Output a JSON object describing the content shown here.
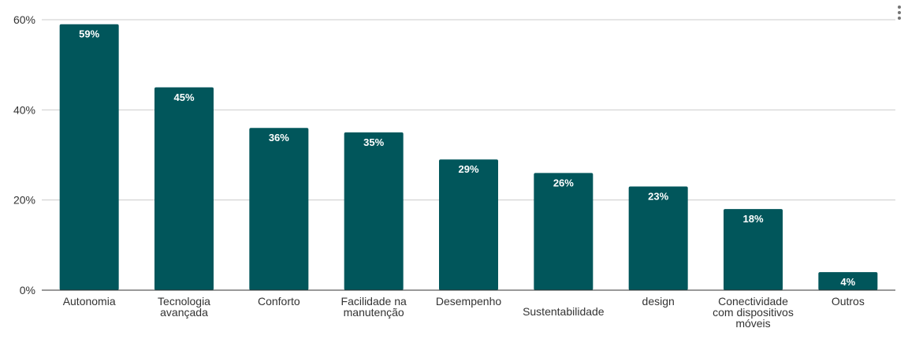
{
  "colors": {
    "bar": "#01565b",
    "grid": "#cccccc",
    "axis": "#333333",
    "text": "#333333",
    "label": "#ffffff"
  },
  "menu": {
    "icon": "more-vert-icon"
  },
  "chart_data": {
    "type": "bar",
    "categories": [
      "Autonomia",
      "Tecnologia avançada",
      "Conforto",
      "Facilidade na manutenção",
      "Desempenho",
      "Sustentabilidade",
      "design",
      "Conectividade com dispositivos móveis",
      "Outros"
    ],
    "category_lines": [
      [
        "Autonomia"
      ],
      [
        "Tecnologia",
        "avançada"
      ],
      [
        "Conforto"
      ],
      [
        "Facilidade na",
        "manutenção"
      ],
      [
        "Desempenho"
      ],
      [
        "Sustentabilidade"
      ],
      [
        "design"
      ],
      [
        "Conectividade",
        "com dispositivos",
        "móveis"
      ],
      [
        "Outros"
      ]
    ],
    "values": [
      59,
      45,
      36,
      35,
      29,
      26,
      23,
      18,
      4
    ],
    "data_labels": [
      "59%",
      "45%",
      "36%",
      "35%",
      "29%",
      "26%",
      "23%",
      "18%",
      "4%"
    ],
    "yticks": [
      0,
      20,
      40,
      60
    ],
    "ytick_labels": [
      "0%",
      "20%",
      "40%",
      "60%"
    ],
    "ylim": [
      0,
      60
    ],
    "grid": true,
    "title": "",
    "xlabel": "",
    "ylabel": ""
  }
}
